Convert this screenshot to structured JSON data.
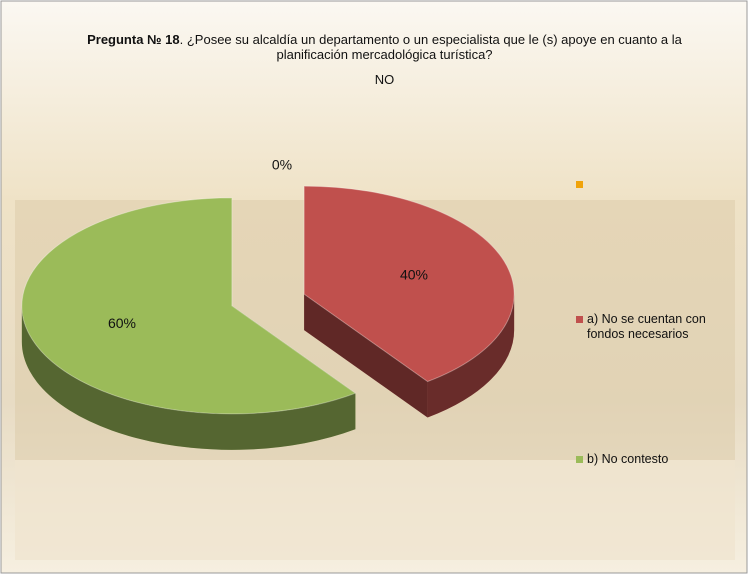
{
  "chart_data": {
    "type": "pie",
    "title_bold": "Pregunta № 18",
    "title_rest": ". ¿Posee su alcaldía un departamento o un especialista que le (s) apoye en cuanto a la planificación  mercadológica turística?",
    "subtitle": "NO",
    "categories": [
      null,
      "a) No se cuentan con fondos necesarios",
      "b) No contesto"
    ],
    "values": [
      0,
      40,
      60
    ],
    "value_labels": [
      "0%",
      "40%",
      "60%"
    ],
    "colors": [
      "#f0a30a",
      "#c0504d",
      "#9bbb59"
    ]
  }
}
